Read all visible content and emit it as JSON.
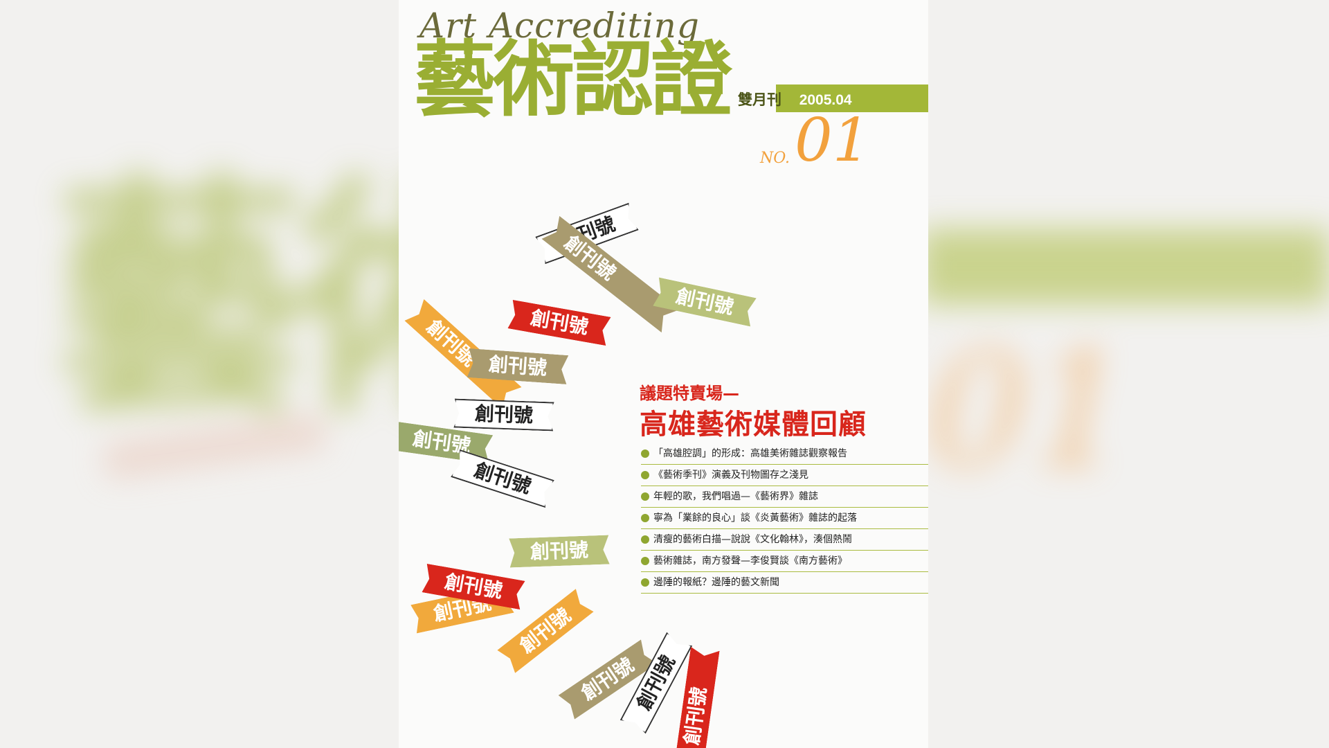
{
  "background": {
    "title": "藝術",
    "number": "01"
  },
  "cover": {
    "script_title": "Art Accrediting",
    "main_title": "藝術認證",
    "frequency": "雙月刊",
    "date": "2005.04",
    "issue_prefix": "NO.",
    "issue_number": "01"
  },
  "ribbon_text": "創刊號",
  "feature": {
    "kicker": "議題特賣場—",
    "title": "高雄藝術媒體回顧",
    "items": [
      "「高雄腔調」的形成：高雄美術雜誌觀察報告",
      "《藝術季刊》演義及刊物圖存之淺見",
      "年輕的歌，我們唱過—《藝術界》雜誌",
      "寧為「業餘的良心」談《炎黃藝術》雜誌的起落",
      "清瘦的藝術白描—說說《文化翰林》，湊個熱鬧",
      "藝術雜誌，南方發聲—李俊賢談《南方藝術》",
      "邊陲的報紙？邊陲的藝文新聞"
    ]
  },
  "colors": {
    "title_green": "#9aae33",
    "accent_orange": "#f2a13d",
    "accent_red": "#d8261c",
    "bar_green": "#a3b738"
  }
}
